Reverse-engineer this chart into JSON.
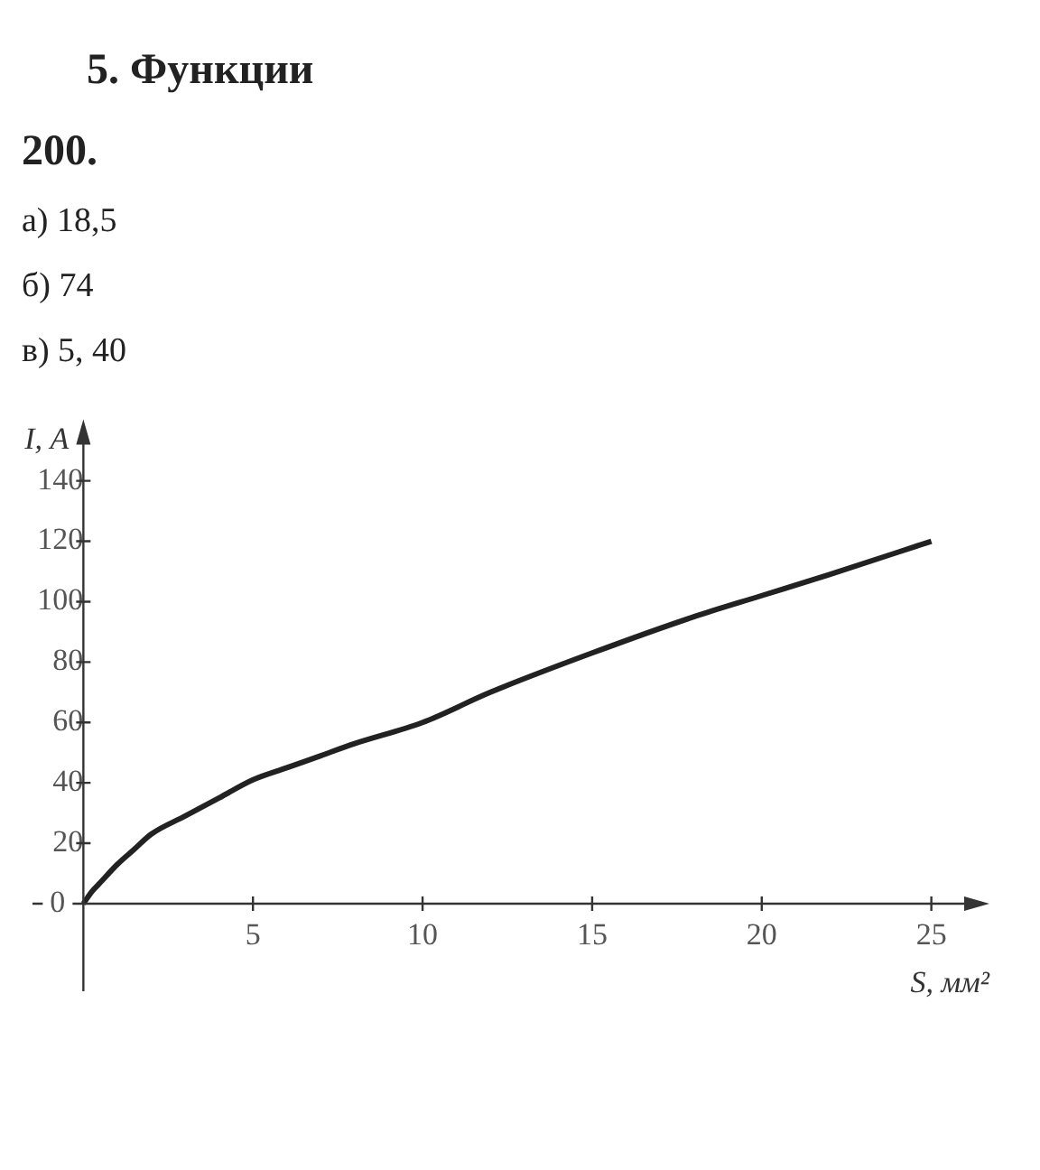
{
  "chart_data": {
    "type": "line",
    "title": "5. Функции",
    "subtitle": "200.",
    "annotations": [
      "а) 18,5",
      "б) 74",
      "в) 5, 40"
    ],
    "xlabel": "S, мм²",
    "ylabel": "I, А",
    "x": [
      0,
      0.25,
      0.5,
      1,
      1.5,
      2,
      3,
      4,
      5,
      6,
      7,
      8,
      10,
      12,
      15,
      18,
      20,
      22,
      25
    ],
    "series": [
      {
        "color": "#222222",
        "values": [
          0,
          4,
          7,
          13,
          18,
          23,
          29,
          35,
          41,
          45,
          49,
          53,
          60,
          70,
          83,
          95,
          102,
          109,
          120
        ]
      }
    ],
    "xlim": [
      -1.5,
      26.5
    ],
    "ylim": [
      -29,
      158
    ],
    "xticks": [
      5,
      10,
      15,
      20,
      25
    ],
    "yticks": [
      0,
      20,
      40,
      60,
      80,
      100,
      120,
      140
    ],
    "grid": false,
    "legend": false,
    "marker": "none",
    "line_style": "solid"
  }
}
